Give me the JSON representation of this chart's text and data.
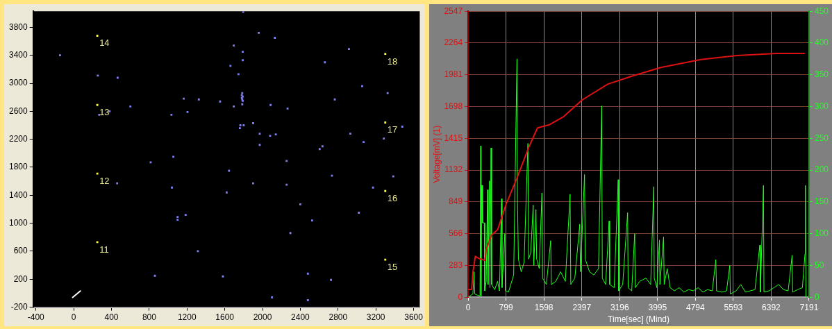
{
  "chart_data": [
    {
      "type": "scatter",
      "xlim": [
        -430,
        3665
      ],
      "ylim": [
        -200,
        4030
      ],
      "xticks": [
        -400,
        0,
        400,
        800,
        1200,
        1600,
        2000,
        2400,
        2800,
        3200,
        3600
      ],
      "yticks": [
        -200,
        200,
        600,
        1000,
        1400,
        1800,
        2200,
        2600,
        3000,
        3400,
        3800
      ],
      "grid": false,
      "legend": false,
      "marker": "square",
      "series": [
        {
          "color": "#7f7ff0",
          "x": [
            -145,
            255,
            465,
            600,
            270,
            380,
            1165,
            1325,
            1035,
            1205,
            1055,
            815,
            460,
            1040,
            1100,
            1100,
            1185,
            1315,
            860,
            1795,
            1960,
            2130,
            1695,
            1790,
            1790,
            1660,
            1745,
            2915,
            2660,
            3055,
            3325,
            1785,
            1780,
            1790,
            1780,
            1785,
            1790,
            1550,
            1695,
            1785,
            2085,
            2265,
            2765,
            1900,
            1765,
            1800,
            1760,
            1970,
            2080,
            2140,
            1970,
            2930,
            3070,
            3285,
            3480,
            2635,
            2605,
            2255,
            1645,
            2735,
            3385,
            1900,
            2255,
            3170,
            1620,
            2400,
            3020,
            2525,
            2295,
            1580,
            2480,
            2725,
            2100,
            2480
          ],
          "values": [
            3400,
            3110,
            3080,
            2670,
            2550,
            2600,
            2780,
            2770,
            2550,
            2590,
            1950,
            1870,
            1570,
            1510,
            1090,
            1050,
            1120,
            600,
            250,
            4020,
            3720,
            3650,
            3540,
            3450,
            3330,
            3250,
            3130,
            3490,
            3300,
            2960,
            2860,
            2860,
            2830,
            2810,
            2790,
            2770,
            2750,
            2740,
            2670,
            2700,
            2690,
            2640,
            2770,
            2430,
            2400,
            2400,
            2360,
            2280,
            2250,
            2270,
            2120,
            2280,
            2160,
            2210,
            2380,
            2100,
            2060,
            1890,
            1750,
            1680,
            1670,
            1570,
            1550,
            1510,
            1440,
            1270,
            1150,
            1040,
            860,
            240,
            280,
            190,
            -60,
            -100
          ]
        },
        {
          "name": "14",
          "color": "#ffff33",
          "x": [
            250
          ],
          "values": [
            3680
          ]
        },
        {
          "name": "13",
          "color": "#ffff33",
          "x": [
            250
          ],
          "values": [
            2690
          ]
        },
        {
          "name": "12",
          "color": "#ffff33",
          "x": [
            250
          ],
          "values": [
            1710
          ]
        },
        {
          "name": "11",
          "color": "#ffff33",
          "x": [
            250
          ],
          "values": [
            730
          ]
        },
        {
          "name": "18",
          "color": "#ffff33",
          "x": [
            3300
          ],
          "values": [
            3420
          ]
        },
        {
          "name": "17",
          "color": "#ffff33",
          "x": [
            3300
          ],
          "values": [
            2440
          ]
        },
        {
          "name": "16",
          "color": "#ffff33",
          "x": [
            3300
          ],
          "values": [
            1460
          ]
        },
        {
          "name": "15",
          "color": "#ffff33",
          "x": [
            3300
          ],
          "values": [
            480
          ]
        }
      ]
    },
    {
      "type": "line",
      "xlabel": "Time[sec] (Mind)",
      "ylabel": "Voltage[mV] (1)",
      "xlim": [
        0,
        7191
      ],
      "ylim": [
        0,
        2547
      ],
      "y2lim": [
        0,
        450
      ],
      "xticks": [
        0,
        799,
        1598,
        2397,
        3196,
        3995,
        4794,
        5593,
        6392,
        7191
      ],
      "yticks": [
        0,
        283,
        566,
        849,
        1132,
        1415,
        1698,
        1981,
        2264,
        2547
      ],
      "y2ticks": [
        0,
        50,
        100,
        150,
        200,
        250,
        300,
        350,
        400,
        450
      ],
      "grid": true,
      "legend": false,
      "marker": "none",
      "line_style": "solid",
      "series": [
        {
          "color": "#dd1111",
          "x": [
            0,
            73,
            102,
            151,
            234,
            356,
            380,
            492,
            624,
            795,
            1029,
            1283,
            1463,
            1722,
            2014,
            2405,
            2941,
            3429,
            4062,
            4891,
            5671,
            6500,
            7100
          ],
          "values": [
            70,
            70,
            225,
            364,
            344,
            328,
            424,
            553,
            603,
            822,
            1061,
            1340,
            1508,
            1538,
            1608,
            1757,
            1897,
            1966,
            2046,
            2116,
            2152,
            2171,
            2171
          ]
        },
        {
          "color": "#22ff22",
          "axis": "y2",
          "x": [
            0,
            60,
            100,
            125,
            140,
            200,
            250,
            265,
            272,
            285,
            295,
            305,
            340,
            350,
            380,
            410,
            420,
            450,
            460,
            483,
            495,
            560,
            620,
            660,
            705,
            715,
            773,
            785,
            850,
            900,
            960,
            1030,
            1040,
            1060,
            1120,
            1180,
            1261,
            1275,
            1320,
            1372,
            1385,
            1430,
            1445,
            1500,
            1556,
            1570,
            1650,
            1741,
            1755,
            1850,
            1950,
            2050,
            2150,
            2165,
            2250,
            2354,
            2370,
            2455,
            2470,
            2560,
            2650,
            2750,
            2817,
            2830,
            2900,
            2973,
            2985,
            3080,
            3165,
            3175,
            3260,
            3364,
            3375,
            3450,
            3513,
            3525,
            3620,
            3750,
            3850,
            3915,
            3925,
            3980,
            4035,
            4045,
            4122,
            4135,
            4200,
            4260,
            4350,
            4450,
            4550,
            4650,
            4750,
            4850,
            4950,
            5050,
            5150,
            5224,
            5240,
            5350,
            5450,
            5519,
            5530,
            5650,
            5750,
            5850,
            5950,
            6050,
            6152,
            6165,
            6229,
            6240,
            6350,
            6450,
            6550,
            6650,
            6750,
            6834,
            6845,
            6950,
            7050,
            7105,
            7114,
            7125
          ],
          "values": [
            0,
            3,
            5,
            40,
            5,
            3,
            2,
            238,
            2,
            176,
            176,
            117,
            117,
            10,
            25,
            169,
            20,
            183,
            15,
            235,
            20,
            12,
            25,
            10,
            155,
            15,
            100,
            10,
            8,
            20,
            35,
            375,
            155,
            60,
            40,
            55,
            242,
            60,
            70,
            145,
            50,
            138,
            60,
            45,
            164,
            30,
            20,
            89,
            20,
            25,
            40,
            25,
            162,
            20,
            30,
            115,
            40,
            193,
            60,
            40,
            35,
            45,
            301,
            30,
            20,
            120,
            20,
            15,
            185,
            10,
            20,
            133,
            15,
            10,
            100,
            15,
            25,
            30,
            20,
            174,
            30,
            15,
            90,
            20,
            95,
            20,
            45,
            15,
            10,
            15,
            8,
            12,
            10,
            15,
            8,
            12,
            10,
            59,
            10,
            8,
            10,
            50,
            5,
            10,
            20,
            8,
            10,
            12,
            82,
            8,
            176,
            8,
            10,
            15,
            20,
            12,
            10,
            66,
            8,
            12,
            15,
            68,
            176,
            0
          ]
        }
      ]
    }
  ]
}
